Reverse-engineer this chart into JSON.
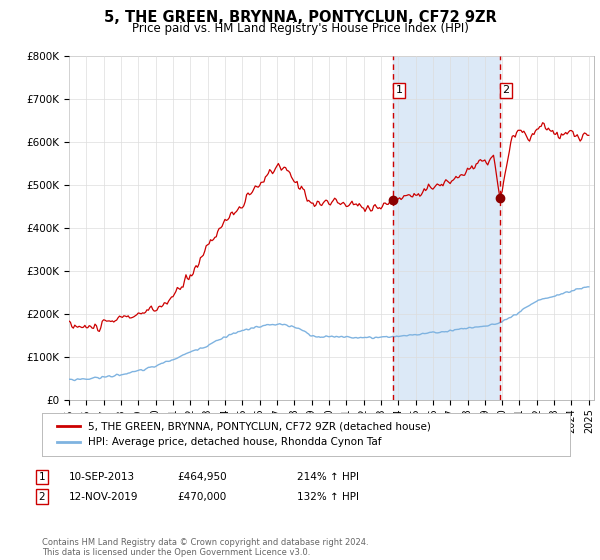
{
  "title": "5, THE GREEN, BRYNNA, PONTYCLUN, CF72 9ZR",
  "subtitle": "Price paid vs. HM Land Registry's House Price Index (HPI)",
  "title_fontsize": 10.5,
  "subtitle_fontsize": 8.5,
  "ylim": [
    0,
    800000
  ],
  "yticks": [
    0,
    100000,
    200000,
    300000,
    400000,
    500000,
    600000,
    700000,
    800000
  ],
  "ytick_labels": [
    "£0",
    "£100K",
    "£200K",
    "£300K",
    "£400K",
    "£500K",
    "£600K",
    "£700K",
    "£800K"
  ],
  "sale1_date_num": 2013.69,
  "sale1_price": 464950,
  "sale1_label": "1",
  "sale2_date_num": 2019.87,
  "sale2_price": 470000,
  "sale2_label": "2",
  "shade_color": "#dce9f7",
  "line_red_color": "#cc0000",
  "line_blue_color": "#7fb3e0",
  "legend_red_label": "5, THE GREEN, BRYNNA, PONTYCLUN, CF72 9ZR (detached house)",
  "legend_blue_label": "HPI: Average price, detached house, Rhondda Cynon Taf",
  "footnote": "Contains HM Land Registry data © Crown copyright and database right 2024.\nThis data is licensed under the Open Government Licence v3.0.",
  "background_color": "#ffffff",
  "plot_bg_color": "#ffffff",
  "grid_color": "#dddddd",
  "ann1_date": "10-SEP-2013",
  "ann1_price": "£464,950",
  "ann1_pct": "214% ↑ HPI",
  "ann2_date": "12-NOV-2019",
  "ann2_price": "£470,000",
  "ann2_pct": "132% ↑ HPI"
}
